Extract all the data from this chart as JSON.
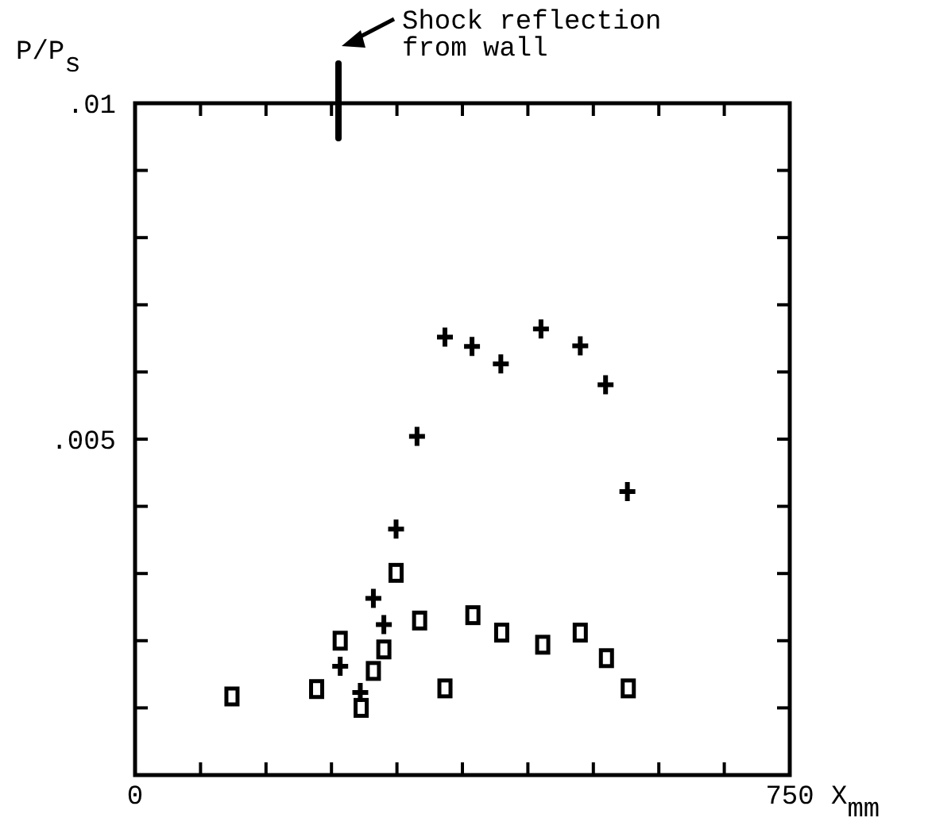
{
  "chart_data": {
    "type": "scatter",
    "ylabel": "P/P$_{s}$",
    "xlabel": "X$_{mm}$",
    "xlim": [
      0,
      750
    ],
    "ylim": [
      0,
      0.01
    ],
    "xticks": [
      0,
      {
        "value": 75,
        "label": null
      },
      {
        "value": 150,
        "label": null
      },
      {
        "value": 225,
        "label": null
      },
      {
        "value": 300,
        "label": null
      },
      {
        "value": 375,
        "label": null
      },
      {
        "value": 450,
        "label": null
      },
      {
        "value": 525,
        "label": null
      },
      {
        "value": 600,
        "label": null
      },
      {
        "value": 675,
        "label": null
      },
      750
    ],
    "yticks": [
      {
        "value": 0,
        "label": null
      },
      {
        "value": 0.001,
        "label": null
      },
      {
        "value": 0.002,
        "label": null
      },
      {
        "value": 0.003,
        "label": null
      },
      {
        "value": 0.004,
        "label": null
      },
      {
        "value": 0.005,
        "label": ".005"
      },
      {
        "value": 0.006,
        "label": null
      },
      {
        "value": 0.007,
        "label": null
      },
      {
        "value": 0.008,
        "label": null
      },
      {
        "value": 0.009,
        "label": null
      },
      {
        "value": 0.01,
        "label": ".01"
      }
    ],
    "grid": false,
    "annotations": [
      "Shock reflection\nfrom wall"
    ],
    "series": [
      {
        "color": "#000000",
        "marker": "cross",
        "x": [
          235,
          258,
          273,
          285,
          299,
          323,
          355,
          386,
          419,
          465,
          510,
          539,
          564
        ],
        "values": [
          0.00162,
          0.00123,
          0.00263,
          0.00224,
          0.00366,
          0.00504,
          0.00652,
          0.00638,
          0.00612,
          0.00664,
          0.00639,
          0.00581,
          0.00422
        ]
      },
      {
        "color": "#000000",
        "marker": "square",
        "x": [
          111,
          208,
          235,
          259,
          273,
          285,
          299,
          326,
          355,
          387,
          420,
          467,
          510,
          540,
          565
        ],
        "values": [
          0.00117,
          0.00128,
          0.002,
          0.001,
          0.00155,
          0.00187,
          0.00301,
          0.0023,
          0.00129,
          0.00238,
          0.00212,
          0.00194,
          0.00212,
          0.00174,
          0.00129
        ]
      }
    ]
  }
}
